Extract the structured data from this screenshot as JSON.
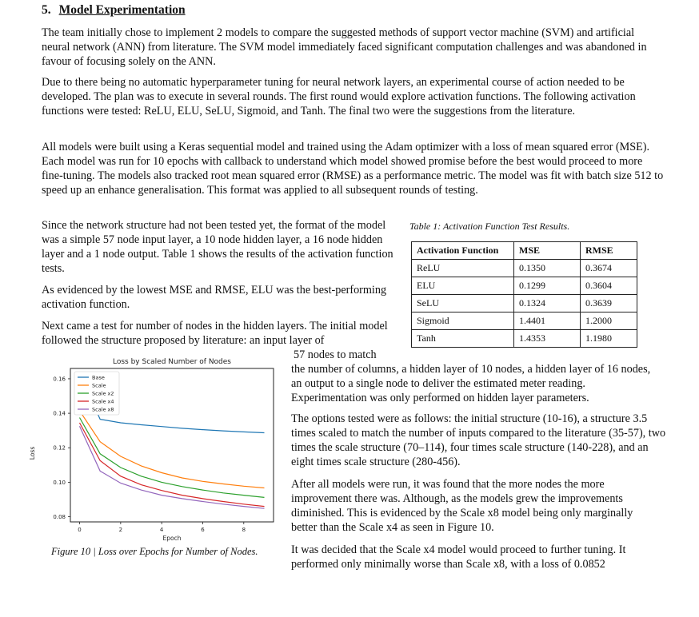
{
  "section": {
    "number": "5.",
    "title": "Model Experimentation"
  },
  "paragraphs": {
    "p1": "The team initially chose to implement 2 models to compare the suggested methods of support vector machine (SVM) and artificial neural network (ANN) from literature. The SVM model immediately faced significant computation challenges and was abandoned in favour of focusing solely on the ANN.",
    "p2": "Due to there being no automatic hyperparameter tuning for neural network layers, an experimental course of action needed to be developed. The plan was to execute in several rounds. The first round would explore activation functions. The following activation functions were tested: ReLU, ELU, SeLU, Sigmoid, and Tanh. The final two were the suggestions from the literature.",
    "p3": "All models were built using a Keras sequential model and trained using the Adam optimizer with a loss of mean squared error (MSE). Each model was run for 10 epochs with callback to understand which model showed promise before the best would proceed to more fine-tuning. The models also tracked root mean squared error (RMSE) as a performance metric. The model was fit with batch size 512 to speed up an enhance generalisation. This format was applied to all subsequent rounds of testing.",
    "p4": "Since the network structure had not been tested yet, the format of the model was a simple 57 node input layer, a 10 node hidden layer, a 16 node hidden layer and a 1 node output. Table 1 shows the results of the activation function tests.",
    "p5": "As evidenced by the lowest MSE and RMSE, ELU was the best-performing activation function.",
    "p6": "Next came a test for number of nodes in the hidden layers. The initial model followed the structure proposed by literature: an input layer of",
    "p6b": "57 nodes to match",
    "p7": "the number of columns, a hidden layer of 10 nodes, a hidden layer of 16 nodes, an output to a single node to deliver the estimated meter reading. Experimentation was only performed on hidden layer parameters.",
    "p8": "The options tested were as follows: the initial structure (10-16), a structure 3.5 times scaled to match the number of inputs compared to the literature (35-57), two times the scale structure (70–114), four times scale structure (140-228), and an eight times scale structure (280-456).",
    "p9": "After all models were run, it was found that the more nodes the more improvement there was. Although, as the models grew the improvements diminished. This is evidenced by the Scale x8 model being only marginally better than the Scale x4 as seen in Figure 10.",
    "p10": "It was decided that the Scale x4 model would proceed to further tuning. It performed only minimally worse than Scale x8, with a loss of 0.0852"
  },
  "table": {
    "caption": "Table 1: Activation Function Test Results.",
    "headers": [
      "Activation Function",
      "MSE",
      "RMSE"
    ],
    "rows": [
      [
        "ReLU",
        "0.1350",
        "0.3674"
      ],
      [
        "ELU",
        "0.1299",
        "0.3604"
      ],
      [
        "SeLU",
        "0.1324",
        "0.3639"
      ],
      [
        "Sigmoid",
        "1.4401",
        "1.2000"
      ],
      [
        "Tanh",
        "1.4353",
        "1.1980"
      ]
    ]
  },
  "figure": {
    "caption": "Figure 10 | Loss over Epochs for Number of Nodes."
  },
  "chart_data": {
    "type": "line",
    "title": "Loss by Scaled Number of Nodes",
    "xlabel": "Epoch",
    "ylabel": "Loss",
    "xlim": [
      -0.45,
      9.45
    ],
    "ylim": [
      0.077,
      0.166
    ],
    "xticks": [
      0,
      2,
      4,
      6,
      8
    ],
    "yticks": [
      0.08,
      0.1,
      0.12,
      0.14,
      0.16
    ],
    "grid": false,
    "legend_position": "top-left",
    "x": [
      0,
      1,
      2,
      3,
      4,
      5,
      6,
      7,
      8,
      9
    ],
    "series": [
      {
        "name": "Base",
        "color": "#1f77b4",
        "values": [
          0.163,
          0.1365,
          0.1345,
          0.1333,
          0.1323,
          0.1313,
          0.1305,
          0.1298,
          0.1292,
          0.1287
        ]
      },
      {
        "name": "Scale",
        "color": "#ff7f0e",
        "values": [
          0.1415,
          0.1235,
          0.115,
          0.1095,
          0.1055,
          0.1025,
          0.1005,
          0.099,
          0.0977,
          0.0967
        ]
      },
      {
        "name": "Scale x2",
        "color": "#2ca02c",
        "values": [
          0.1375,
          0.1165,
          0.1085,
          0.1035,
          0.1,
          0.0975,
          0.0955,
          0.0938,
          0.0925,
          0.0912
        ]
      },
      {
        "name": "Scale x4",
        "color": "#d62728",
        "values": [
          0.1345,
          0.1125,
          0.1035,
          0.0985,
          0.0952,
          0.0925,
          0.0905,
          0.0888,
          0.0873,
          0.086
        ]
      },
      {
        "name": "Scale x8",
        "color": "#9467bd",
        "values": [
          0.1325,
          0.1065,
          0.0995,
          0.0955,
          0.0925,
          0.0905,
          0.0888,
          0.0873,
          0.086,
          0.0848
        ]
      }
    ]
  }
}
